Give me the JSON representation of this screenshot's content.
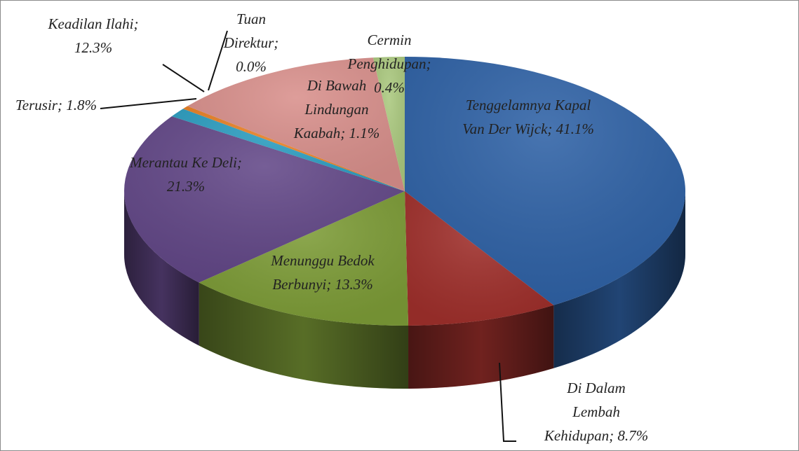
{
  "chart_data": {
    "type": "pie",
    "values": [
      41.1,
      8.7,
      13.3,
      21.3,
      1.1,
      0.4,
      0.0,
      12.3,
      1.8
    ],
    "value_labels": [
      "Tenggelamnya Kapal Van Der Wijck; 41.1%",
      "Di Dalam Lembah Kehidupan; 8.7%",
      "Menunggu Bedok Berbunyi; 13.3%",
      "Merantau Ke Deli; 21.3%",
      "Di Bawah Lindungan Kaabah; 1.1%",
      "Cermin Penghidupan; 0.4%",
      "Tuan Direktur; 0.0%",
      "Keadilan Ilahi; 12.3%",
      "Terusir; 1.8%"
    ],
    "colors": [
      "#2f62a6",
      "#a0302c",
      "#7d9c37",
      "#634888",
      "#2e9fc2",
      "#ea8227",
      "#c0504d",
      "#d9908c",
      "#abc97f"
    ]
  }
}
